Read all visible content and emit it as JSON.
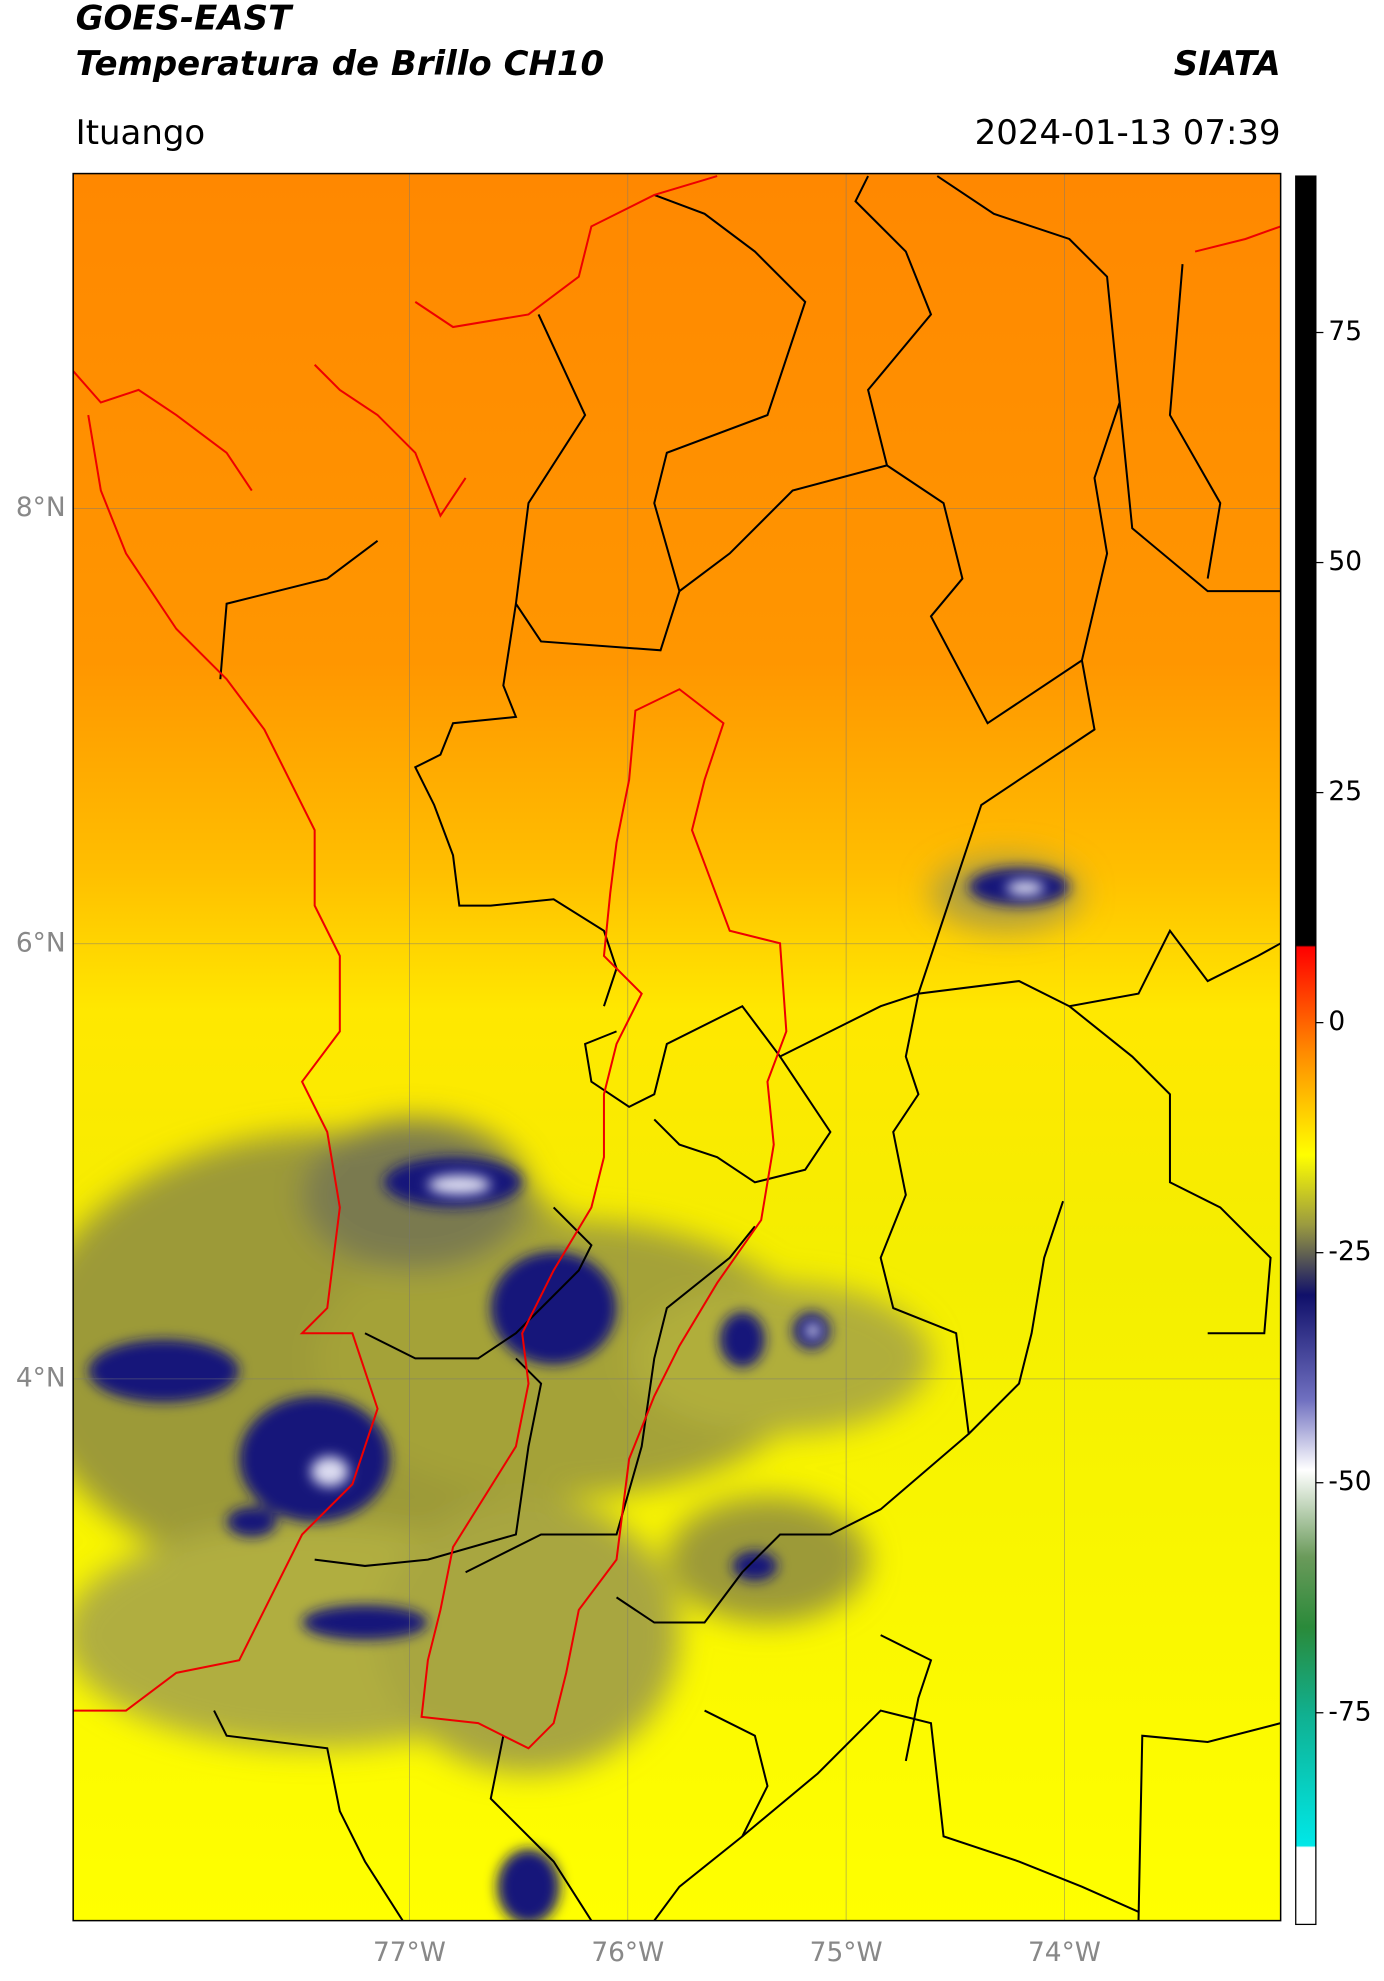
{
  "header": {
    "title": "GOES-EAST",
    "subtitle": "Temperatura de Brillo CH10",
    "brand": "SIATA",
    "location": "Ituango",
    "datetime": "2024-01-13 07:39"
  },
  "map": {
    "lat_range": [
      1.51,
      9.54
    ],
    "lon_range": [
      -78.54,
      -73.01
    ],
    "lat_ticks": [
      {
        "value": 8,
        "label": "8°N"
      },
      {
        "value": 6,
        "label": "6°N"
      },
      {
        "value": 4,
        "label": "4°N"
      }
    ],
    "lon_ticks": [
      {
        "value": -77,
        "label": "77°W"
      },
      {
        "value": -76,
        "label": "76°W"
      },
      {
        "value": -75,
        "label": "75°W"
      },
      {
        "value": -74,
        "label": "74°W"
      }
    ]
  },
  "colorbar": {
    "range": [
      -98,
      92
    ],
    "ticks": [
      75,
      50,
      25,
      0,
      -25,
      -50,
      -75
    ]
  }
}
